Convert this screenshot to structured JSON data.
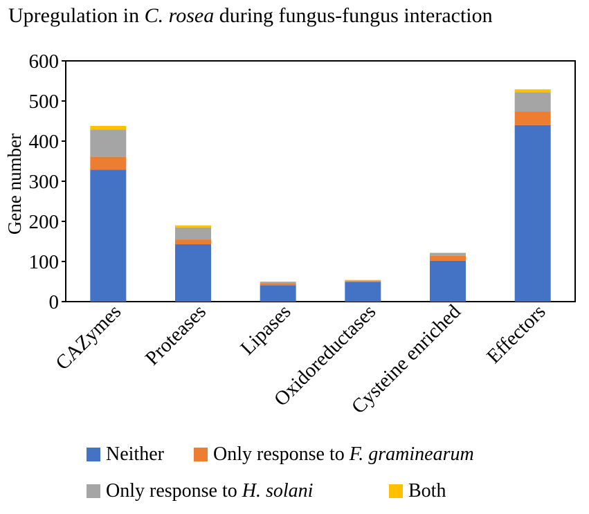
{
  "chart_data": {
    "type": "bar",
    "stacked": true,
    "title": "Upregulation in C. rosea during fungus-fungus interaction",
    "title_parts": [
      {
        "text": "Upregulation in ",
        "italic": false
      },
      {
        "text": "C. rosea",
        "italic": true
      },
      {
        "text": " during fungus-fungus interaction",
        "italic": false
      }
    ],
    "ylabel": "Gene number",
    "xlabel": "",
    "ylim": [
      0,
      600
    ],
    "yticks": [
      "0",
      "100",
      "200",
      "300",
      "400",
      "500",
      "600"
    ],
    "grid": false,
    "legend_position": "bottom",
    "categories": [
      "CAZymes",
      "Proteases",
      "Lipases",
      "Oxidoreductases",
      "Cysteine enriched",
      "Effectors"
    ],
    "series": [
      {
        "name": "Neither",
        "name_parts": [
          {
            "text": "Neither",
            "italic": false
          }
        ],
        "color": "#4472C4",
        "values": [
          329,
          143,
          41,
          49,
          102,
          440
        ]
      },
      {
        "name": "Only response to F. graminearum",
        "name_parts": [
          {
            "text": "Only response to ",
            "italic": false
          },
          {
            "text": "F. graminearum",
            "italic": true
          }
        ],
        "color": "#ED7D31",
        "values": [
          32,
          12,
          5,
          2,
          12,
          34
        ]
      },
      {
        "name": "Only response to H. solani",
        "name_parts": [
          {
            "text": "Only response to ",
            "italic": false
          },
          {
            "text": "H. solani",
            "italic": true
          }
        ],
        "color": "#A5A5A5",
        "values": [
          68,
          30,
          3,
          2,
          7,
          48
        ]
      },
      {
        "name": "Both",
        "name_parts": [
          {
            "text": "Both",
            "italic": false
          }
        ],
        "color": "#FFC000",
        "values": [
          9,
          5,
          1,
          1,
          1,
          7
        ]
      }
    ]
  }
}
